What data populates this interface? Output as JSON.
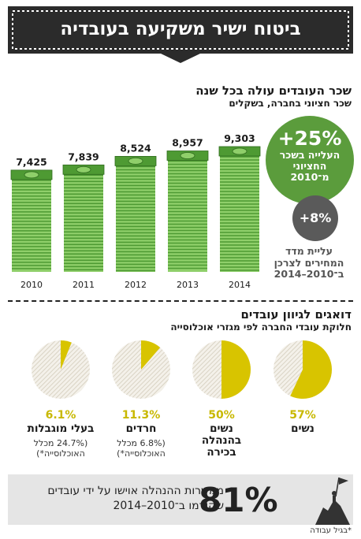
{
  "banner": {
    "title": "ביטוח ישיר משקיעה בעובדיה"
  },
  "section1": {
    "title": "שכר העובדים עולה בכל שנה",
    "subtitle": "שכר חציוני בחברה, בשקלים"
  },
  "salary_badge": {
    "value": "+25%",
    "text": "העלייה בשכר החציוני מ־2010"
  },
  "cpi_badge": {
    "value": "+8%",
    "text": "עליית מדד המחירים לצרכן ב־2010–2014"
  },
  "section2": {
    "title": "דואגים לגיוון עובדים",
    "subtitle": "חלוקת עובדי החברה לפי מגזרי אוכלוסייה"
  },
  "pies": [
    {
      "pct": "57%",
      "label": "נשים",
      "note": ""
    },
    {
      "pct": "50%",
      "label": "נשים בהנהלה בכירה",
      "note": ""
    },
    {
      "pct": "11.3%",
      "label": "חרדים",
      "note": "(6.8% מכלל האוכלוסייה*)"
    },
    {
      "pct": "6.1%",
      "label": "בעלי מוגבלות",
      "note": "(24.7% מכלל האוכלוסייה*)"
    }
  ],
  "band": {
    "big": "81%",
    "text": "ממשרות ההנהלה אוישו על ידי עובדים שקודמו ב־2010–2014"
  },
  "footnote": "*בגיל עבודה",
  "colors": {
    "banner": "#2b2b2b",
    "money_green": "#4e9a33",
    "money_light": "#8fcf6a",
    "badge_green": "#5b9c3c",
    "badge_gray": "#5a5a5a",
    "pie_yellow": "#d8c400",
    "pie_hatch": "#d9d3c4"
  },
  "chart_data": [
    {
      "type": "bar",
      "categories": [
        "2010",
        "2011",
        "2012",
        "2013",
        "2014"
      ],
      "values": [
        7425,
        7839,
        8524,
        8957,
        9303
      ],
      "labels": [
        "7,425",
        "7,839",
        "8,524",
        "8,957",
        "9,303"
      ],
      "title": "שכר העובדים עולה בכל שנה",
      "subtitle": "שכר חציוני בחברה, בשקלים",
      "ylim": [
        0,
        9303
      ],
      "grid": false
    },
    {
      "type": "pie",
      "categories": [
        "נשים",
        "נשים בהנהלה בכירה",
        "חרדים",
        "בעלי מוגבלות"
      ],
      "values": [
        57,
        50,
        11.3,
        6.1
      ]
    }
  ]
}
